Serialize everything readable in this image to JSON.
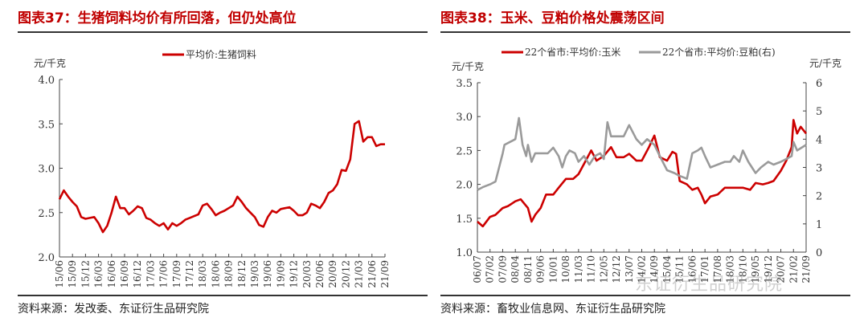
{
  "footer_left": "资料来源：发改委、东证衍生品研究院",
  "footer_right": "资料来源：畜牧业信息网、东证衍生品研究院",
  "watermark": "东证衍生品研究院",
  "chart_data": [
    {
      "type": "line",
      "title": "图表37：生猪饲料均价有所回落，但仍处高位",
      "ylabel": "元/千克",
      "ylim": [
        2.0,
        4.0
      ],
      "yticks": [
        "2.0",
        "2.5",
        "3.0",
        "3.5",
        "4.0"
      ],
      "xticks": [
        "15/06",
        "15/09",
        "15/12",
        "16/03",
        "16/06",
        "16/09",
        "16/12",
        "17/03",
        "17/06",
        "17/09",
        "17/12",
        "18/03",
        "18/06",
        "18/09",
        "18/12",
        "19/03",
        "19/06",
        "19/09",
        "19/12",
        "20/03",
        "20/06",
        "20/09",
        "20/12",
        "21/03",
        "21/06",
        "21/09"
      ],
      "grid": false,
      "legend": "top-center",
      "series": [
        {
          "name": "平均价:生猪饲料",
          "color": "#cc0000",
          "axis": "left",
          "x": [
            "15/06",
            "15/07",
            "15/08",
            "15/09",
            "15/10",
            "15/11",
            "15/12",
            "16/01",
            "16/02",
            "16/03",
            "16/04",
            "16/05",
            "16/06",
            "16/07",
            "16/08",
            "16/09",
            "16/10",
            "16/11",
            "16/12",
            "17/01",
            "17/02",
            "17/03",
            "17/04",
            "17/05",
            "17/06",
            "17/07",
            "17/08",
            "17/09",
            "17/10",
            "17/11",
            "17/12",
            "18/01",
            "18/02",
            "18/03",
            "18/04",
            "18/05",
            "18/06",
            "18/07",
            "18/08",
            "18/09",
            "18/10",
            "18/11",
            "18/12",
            "19/01",
            "19/02",
            "19/03",
            "19/04",
            "19/05",
            "19/06",
            "19/07",
            "19/08",
            "19/09",
            "19/10",
            "19/11",
            "19/12",
            "20/01",
            "20/02",
            "20/03",
            "20/04",
            "20/05",
            "20/06",
            "20/07",
            "20/08",
            "20/09",
            "20/10",
            "20/11",
            "20/12",
            "21/01",
            "21/02",
            "21/03",
            "21/04",
            "21/05",
            "21/06",
            "21/07",
            "21/08",
            "21/09"
          ],
          "values": [
            2.65,
            2.75,
            2.68,
            2.62,
            2.57,
            2.45,
            2.43,
            2.44,
            2.45,
            2.38,
            2.28,
            2.35,
            2.5,
            2.68,
            2.55,
            2.55,
            2.48,
            2.52,
            2.57,
            2.55,
            2.44,
            2.42,
            2.38,
            2.35,
            2.38,
            2.31,
            2.38,
            2.35,
            2.38,
            2.42,
            2.44,
            2.46,
            2.48,
            2.58,
            2.6,
            2.54,
            2.47,
            2.5,
            2.52,
            2.55,
            2.58,
            2.68,
            2.62,
            2.55,
            2.5,
            2.45,
            2.36,
            2.34,
            2.45,
            2.52,
            2.5,
            2.54,
            2.55,
            2.56,
            2.52,
            2.47,
            2.47,
            2.5,
            2.6,
            2.58,
            2.55,
            2.62,
            2.72,
            2.75,
            2.82,
            2.98,
            2.97,
            3.1,
            3.5,
            3.53,
            3.3,
            3.35,
            3.35,
            3.25,
            3.27,
            3.27
          ]
        }
      ]
    },
    {
      "type": "line",
      "title": "图表38：玉米、豆粕价格处震荡区间",
      "ylabel": "元/千克",
      "ylabel_right": "元/千克",
      "ylim": [
        1.0,
        3.5
      ],
      "ylim_right": [
        0,
        6
      ],
      "yticks": [
        "1.0",
        "1.5",
        "2.0",
        "2.5",
        "3.0",
        "3.5"
      ],
      "yticks_right": [
        "0",
        "1",
        "2",
        "3",
        "4",
        "5",
        "6"
      ],
      "xticks": [
        "06/07",
        "07/02",
        "07/09",
        "08/04",
        "08/11",
        "09/06",
        "10/01",
        "10/08",
        "11/03",
        "11/10",
        "12/05",
        "12/12",
        "13/07",
        "14/02",
        "14/09",
        "15/04",
        "15/11",
        "16/06",
        "17/01",
        "17/08",
        "18/03",
        "18/10",
        "19/05",
        "19/12",
        "20/07",
        "21/02",
        "21/09"
      ],
      "grid": false,
      "legend": "top-center",
      "series": [
        {
          "name": "22个省市:平均价:玉米",
          "color": "#cc0000",
          "axis": "left",
          "x": [
            "06/07",
            "06/10",
            "07/02",
            "07/05",
            "07/09",
            "07/12",
            "08/04",
            "08/07",
            "08/11",
            "09/01",
            "09/03",
            "09/06",
            "09/09",
            "10/01",
            "10/04",
            "10/08",
            "10/12",
            "11/03",
            "11/07",
            "11/10",
            "12/01",
            "12/05",
            "12/09",
            "12/12",
            "13/04",
            "13/07",
            "13/11",
            "14/02",
            "14/06",
            "14/09",
            "14/12",
            "15/04",
            "15/07",
            "15/09",
            "15/11",
            "16/03",
            "16/06",
            "16/09",
            "16/11",
            "17/01",
            "17/04",
            "17/08",
            "17/12",
            "18/03",
            "18/07",
            "18/10",
            "19/02",
            "19/05",
            "19/09",
            "19/12",
            "20/03",
            "20/07",
            "20/10",
            "21/01",
            "21/02",
            "21/04",
            "21/06",
            "21/09"
          ],
          "values": [
            1.45,
            1.38,
            1.52,
            1.55,
            1.65,
            1.68,
            1.75,
            1.78,
            1.65,
            1.45,
            1.55,
            1.65,
            1.85,
            1.85,
            1.95,
            2.08,
            2.08,
            2.15,
            2.35,
            2.5,
            2.35,
            2.42,
            2.55,
            2.4,
            2.4,
            2.45,
            2.35,
            2.35,
            2.55,
            2.72,
            2.4,
            2.35,
            2.48,
            2.45,
            2.05,
            2.0,
            1.92,
            1.95,
            1.85,
            1.72,
            1.82,
            1.85,
            1.95,
            1.95,
            1.95,
            1.95,
            1.92,
            2.02,
            2.0,
            2.02,
            2.05,
            2.2,
            2.35,
            2.55,
            2.95,
            2.75,
            2.85,
            2.75
          ]
        },
        {
          "name": "22个省市:平均价:豆粕(右)",
          "color": "#9a9a9a",
          "axis": "right",
          "x": [
            "06/07",
            "06/10",
            "07/02",
            "07/05",
            "07/09",
            "07/10",
            "08/01",
            "08/04",
            "08/06",
            "08/08",
            "08/10",
            "08/11",
            "09/01",
            "09/03",
            "09/06",
            "09/10",
            "10/01",
            "10/04",
            "10/06",
            "10/08",
            "10/10",
            "11/01",
            "11/03",
            "11/06",
            "11/09",
            "11/12",
            "12/03",
            "12/05",
            "12/07",
            "12/09",
            "12/12",
            "13/04",
            "13/07",
            "13/11",
            "14/02",
            "14/05",
            "14/09",
            "14/12",
            "15/04",
            "15/08",
            "15/11",
            "16/03",
            "16/06",
            "16/09",
            "16/11",
            "17/01",
            "17/04",
            "17/08",
            "17/12",
            "18/03",
            "18/05",
            "18/08",
            "18/10",
            "19/01",
            "19/05",
            "19/08",
            "19/12",
            "20/03",
            "20/07",
            "20/10",
            "21/01",
            "21/02",
            "21/04",
            "21/09"
          ],
          "values": [
            2.2,
            2.3,
            2.4,
            2.5,
            3.5,
            3.8,
            3.9,
            4.0,
            4.75,
            3.8,
            3.4,
            3.8,
            3.2,
            3.5,
            3.5,
            3.5,
            3.7,
            3.4,
            3.0,
            3.4,
            3.6,
            3.5,
            3.2,
            3.4,
            3.1,
            3.4,
            3.5,
            3.3,
            4.6,
            4.1,
            4.1,
            4.1,
            4.5,
            4.0,
            3.8,
            4.0,
            3.8,
            3.4,
            2.9,
            2.8,
            2.7,
            2.6,
            3.5,
            3.6,
            3.7,
            3.4,
            3.0,
            3.1,
            3.2,
            3.2,
            3.4,
            3.2,
            3.6,
            3.2,
            2.8,
            3.0,
            3.2,
            3.1,
            3.2,
            3.3,
            3.4,
            3.9,
            3.6,
            3.8
          ]
        }
      ]
    }
  ]
}
